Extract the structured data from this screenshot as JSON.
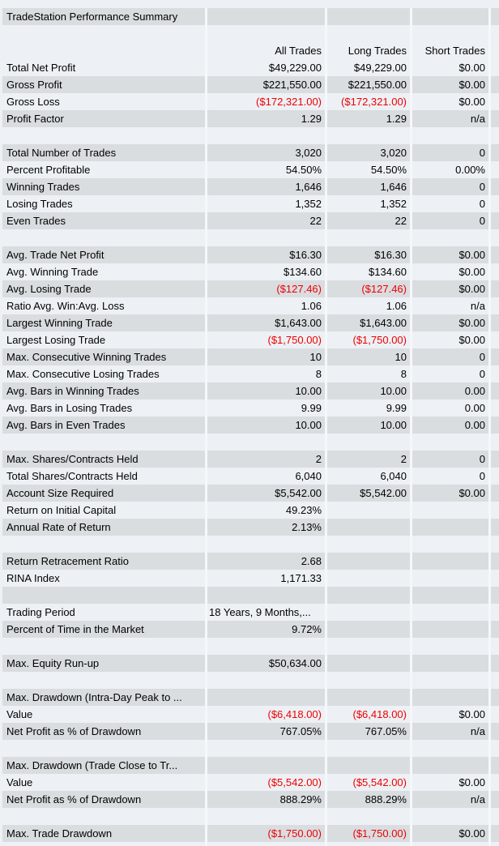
{
  "title": "TradeStation Performance Summary",
  "columns": [
    "All Trades",
    "Long Trades",
    "Short Trades"
  ],
  "colors": {
    "row_light": "#edf1f5",
    "row_dark": "#d9dde0",
    "gap": "#f5f8fa",
    "negative_text": "#ee0000",
    "text": "#000000"
  },
  "rows": [
    {
      "type": "title",
      "shade": "dark",
      "label": "TradeStation Performance Summary",
      "values": [
        "",
        "",
        ""
      ]
    },
    {
      "type": "blank",
      "shade": "light",
      "label": "",
      "values": [
        "",
        "",
        ""
      ]
    },
    {
      "type": "header",
      "shade": "light",
      "label": "",
      "values": [
        "All Trades",
        "Long Trades",
        "Short Trades"
      ]
    },
    {
      "type": "data",
      "shade": "light",
      "label": "Total Net Profit",
      "values": [
        "$49,229.00",
        "$49,229.00",
        "$0.00"
      ]
    },
    {
      "type": "data",
      "shade": "dark",
      "label": "Gross Profit",
      "values": [
        "$221,550.00",
        "$221,550.00",
        "$0.00"
      ]
    },
    {
      "type": "data",
      "shade": "light",
      "label": "Gross Loss",
      "values": [
        "($172,321.00)",
        "($172,321.00)",
        "$0.00"
      ]
    },
    {
      "type": "data",
      "shade": "dark",
      "label": "Profit Factor",
      "values": [
        "1.29",
        "1.29",
        "n/a"
      ]
    },
    {
      "type": "blank",
      "shade": "light",
      "label": "",
      "values": [
        "",
        "",
        ""
      ]
    },
    {
      "type": "data",
      "shade": "dark",
      "label": "Total Number of Trades",
      "values": [
        "3,020",
        "3,020",
        "0"
      ]
    },
    {
      "type": "data",
      "shade": "light",
      "label": "Percent Profitable",
      "values": [
        "54.50%",
        "54.50%",
        "0.00%"
      ]
    },
    {
      "type": "data",
      "shade": "dark",
      "label": "Winning Trades",
      "values": [
        "1,646",
        "1,646",
        "0"
      ]
    },
    {
      "type": "data",
      "shade": "light",
      "label": "Losing Trades",
      "values": [
        "1,352",
        "1,352",
        "0"
      ]
    },
    {
      "type": "data",
      "shade": "dark",
      "label": "Even Trades",
      "values": [
        "22",
        "22",
        "0"
      ]
    },
    {
      "type": "blank",
      "shade": "light",
      "label": "",
      "values": [
        "",
        "",
        ""
      ]
    },
    {
      "type": "data",
      "shade": "dark",
      "label": "Avg. Trade Net Profit",
      "values": [
        "$16.30",
        "$16.30",
        "$0.00"
      ]
    },
    {
      "type": "data",
      "shade": "light",
      "label": "Avg. Winning Trade",
      "values": [
        "$134.60",
        "$134.60",
        "$0.00"
      ]
    },
    {
      "type": "data",
      "shade": "dark",
      "label": "Avg. Losing Trade",
      "values": [
        "($127.46)",
        "($127.46)",
        "$0.00"
      ]
    },
    {
      "type": "data",
      "shade": "light",
      "label": "Ratio Avg. Win:Avg. Loss",
      "values": [
        "1.06",
        "1.06",
        "n/a"
      ]
    },
    {
      "type": "data",
      "shade": "dark",
      "label": "Largest Winning Trade",
      "values": [
        "$1,643.00",
        "$1,643.00",
        "$0.00"
      ]
    },
    {
      "type": "data",
      "shade": "light",
      "label": "Largest Losing Trade",
      "values": [
        "($1,750.00)",
        "($1,750.00)",
        "$0.00"
      ]
    },
    {
      "type": "data",
      "shade": "dark",
      "label": "Max. Consecutive Winning Trades",
      "values": [
        "10",
        "10",
        "0"
      ]
    },
    {
      "type": "data",
      "shade": "light",
      "label": "Max. Consecutive Losing Trades",
      "values": [
        "8",
        "8",
        "0"
      ]
    },
    {
      "type": "data",
      "shade": "dark",
      "label": "Avg. Bars in Winning Trades",
      "values": [
        "10.00",
        "10.00",
        "0.00"
      ]
    },
    {
      "type": "data",
      "shade": "light",
      "label": "Avg. Bars in Losing Trades",
      "values": [
        "9.99",
        "9.99",
        "0.00"
      ]
    },
    {
      "type": "data",
      "shade": "dark",
      "label": "Avg. Bars in Even Trades",
      "values": [
        "10.00",
        "10.00",
        "0.00"
      ]
    },
    {
      "type": "blank",
      "shade": "light",
      "label": "",
      "values": [
        "",
        "",
        ""
      ]
    },
    {
      "type": "data",
      "shade": "dark",
      "label": "Max. Shares/Contracts Held",
      "values": [
        "2",
        "2",
        "0"
      ]
    },
    {
      "type": "data",
      "shade": "light",
      "label": "Total Shares/Contracts Held",
      "values": [
        "6,040",
        "6,040",
        "0"
      ]
    },
    {
      "type": "data",
      "shade": "dark",
      "label": "Account Size Required",
      "values": [
        "$5,542.00",
        "$5,542.00",
        "$0.00"
      ]
    },
    {
      "type": "data",
      "shade": "light",
      "label": "Return on Initial Capital",
      "values": [
        "49.23%",
        "",
        ""
      ]
    },
    {
      "type": "data",
      "shade": "dark",
      "label": "Annual Rate of Return",
      "values": [
        "2.13%",
        "",
        ""
      ]
    },
    {
      "type": "blank",
      "shade": "light",
      "label": "",
      "values": [
        "",
        "",
        ""
      ]
    },
    {
      "type": "data",
      "shade": "dark",
      "label": "Return Retracement Ratio",
      "values": [
        "2.68",
        "",
        ""
      ]
    },
    {
      "type": "data",
      "shade": "light",
      "label": "RINA Index",
      "values": [
        "1,171.33",
        "",
        ""
      ]
    },
    {
      "type": "blank",
      "shade": "dark",
      "label": "",
      "values": [
        "",
        "",
        ""
      ]
    },
    {
      "type": "data",
      "shade": "light",
      "label": "Trading Period",
      "values": [
        "18 Years, 9 Months,...",
        "",
        ""
      ],
      "value_align": "left"
    },
    {
      "type": "data",
      "shade": "dark",
      "label": "Percent of Time in the Market",
      "values": [
        "9.72%",
        "",
        ""
      ]
    },
    {
      "type": "blank",
      "shade": "light",
      "label": "",
      "values": [
        "",
        "",
        ""
      ]
    },
    {
      "type": "data",
      "shade": "dark",
      "label": "Max. Equity Run-up",
      "values": [
        "$50,634.00",
        "",
        ""
      ]
    },
    {
      "type": "blank",
      "shade": "light",
      "label": "",
      "values": [
        "",
        "",
        ""
      ]
    },
    {
      "type": "data",
      "shade": "dark",
      "label": "Max. Drawdown (Intra-Day Peak to ...",
      "values": [
        "",
        "",
        ""
      ]
    },
    {
      "type": "data",
      "shade": "light",
      "label": "Value",
      "values": [
        "($6,418.00)",
        "($6,418.00)",
        "$0.00"
      ]
    },
    {
      "type": "data",
      "shade": "dark",
      "label": "Net Profit as % of Drawdown",
      "values": [
        "767.05%",
        "767.05%",
        "n/a"
      ]
    },
    {
      "type": "blank",
      "shade": "light",
      "label": "",
      "values": [
        "",
        "",
        ""
      ]
    },
    {
      "type": "data",
      "shade": "dark",
      "label": "Max. Drawdown (Trade Close to Tr...",
      "values": [
        "",
        "",
        ""
      ]
    },
    {
      "type": "data",
      "shade": "light",
      "label": "Value",
      "values": [
        "($5,542.00)",
        "($5,542.00)",
        "$0.00"
      ]
    },
    {
      "type": "data",
      "shade": "dark",
      "label": "Net Profit as % of Drawdown",
      "values": [
        "888.29%",
        "888.29%",
        "n/a"
      ]
    },
    {
      "type": "blank",
      "shade": "light",
      "label": "",
      "values": [
        "",
        "",
        ""
      ]
    },
    {
      "type": "data",
      "shade": "dark",
      "label": "Max. Trade Drawdown",
      "values": [
        "($1,750.00)",
        "($1,750.00)",
        "$0.00"
      ]
    },
    {
      "type": "blank",
      "shade": "light",
      "label": "",
      "values": [
        "",
        "",
        ""
      ]
    }
  ]
}
